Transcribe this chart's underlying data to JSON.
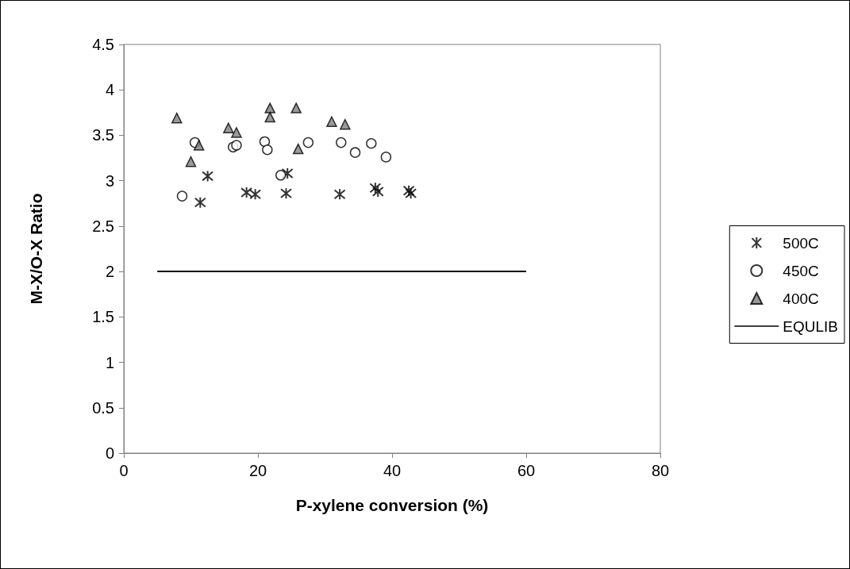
{
  "chart_data": {
    "type": "scatter",
    "xlabel": "P-xylene conversion (%)",
    "ylabel": "M-X/O-X Ratio",
    "xlim": [
      0,
      80
    ],
    "xticks": [
      0,
      20,
      40,
      60,
      80
    ],
    "ylim": [
      0,
      4.5
    ],
    "yticks": [
      0,
      0.5,
      1,
      1.5,
      2,
      2.5,
      3,
      3.5,
      4,
      4.5
    ],
    "grid": false,
    "legend": "right",
    "series": [
      {
        "name": "500C",
        "color": "#000000",
        "marker": "cross",
        "x": [
          12.5,
          11.4,
          18.3,
          19.6,
          24.2,
          24.4,
          32.2,
          37.5,
          37.9,
          42.5,
          42.8
        ],
        "values": [
          3.05,
          2.76,
          2.87,
          2.85,
          2.86,
          3.08,
          2.85,
          2.92,
          2.88,
          2.89,
          2.86
        ]
      },
      {
        "name": "450C",
        "color": "#000000",
        "marker": "circle",
        "x": [
          8.7,
          10.6,
          16.3,
          16.8,
          21.0,
          21.4,
          23.4,
          27.5,
          32.4,
          34.5,
          36.9,
          39.1
        ],
        "values": [
          2.83,
          3.42,
          3.37,
          3.39,
          3.43,
          3.34,
          3.06,
          3.42,
          3.42,
          3.31,
          3.41,
          3.26
        ]
      },
      {
        "name": "400C",
        "color": "#808080",
        "marker": "triangle",
        "x": [
          7.9,
          15.6,
          16.8,
          21.8,
          21.8,
          11.2,
          10.0,
          25.7,
          31.0,
          33.0,
          26.0
        ],
        "values": [
          3.69,
          3.58,
          3.53,
          3.8,
          3.7,
          3.39,
          3.21,
          3.8,
          3.65,
          3.62,
          3.35
        ]
      },
      {
        "name": "EQULIB",
        "type": "line",
        "color": "#000000",
        "marker": "none",
        "line_style": "solid",
        "x": [
          5,
          60
        ],
        "values": [
          2,
          2
        ]
      }
    ]
  }
}
